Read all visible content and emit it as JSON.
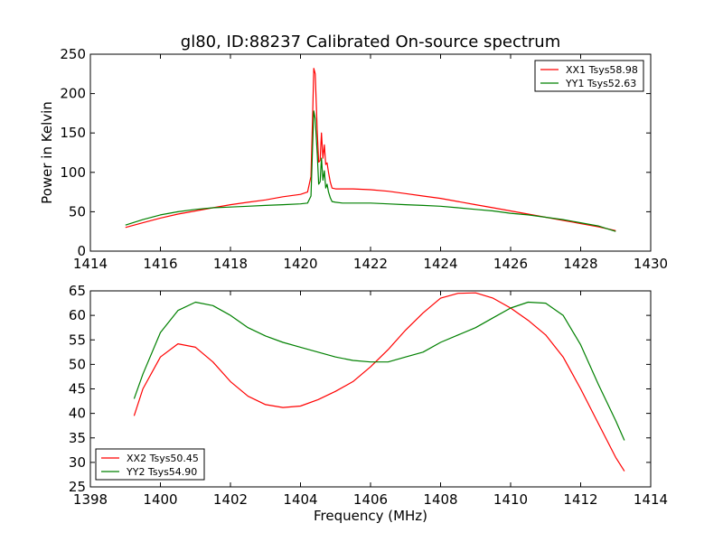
{
  "chart_data": [
    {
      "type": "line",
      "title": "gl80, ID:88237 Calibrated On-source spectrum",
      "xlabel": "",
      "ylabel": "Power in Kelvin",
      "xlim": [
        1414,
        1430
      ],
      "ylim": [
        0,
        250
      ],
      "xticks": [
        1414,
        1416,
        1418,
        1420,
        1422,
        1424,
        1426,
        1428,
        1430
      ],
      "yticks": [
        0,
        50,
        100,
        150,
        200,
        250
      ],
      "xtick_labels": [
        "1414",
        "1416",
        "1418",
        "1420",
        "1422",
        "1424",
        "1426",
        "1428",
        "1430"
      ],
      "ytick_labels": [
        "0",
        "50",
        "100",
        "150",
        "200",
        "250"
      ],
      "legend_position": "top-right",
      "series": [
        {
          "name": "XX1 Tsys58.98",
          "color": "#ff0000",
          "x": [
            1415.0,
            1415.5,
            1416.0,
            1416.5,
            1417.0,
            1417.5,
            1418.0,
            1418.5,
            1419.0,
            1419.5,
            1420.0,
            1420.2,
            1420.3,
            1420.35,
            1420.38,
            1420.42,
            1420.48,
            1420.52,
            1420.56,
            1420.6,
            1420.64,
            1420.68,
            1420.72,
            1420.76,
            1420.8,
            1420.85,
            1420.9,
            1421.0,
            1421.2,
            1421.5,
            1422.0,
            1422.5,
            1423.0,
            1423.5,
            1424.0,
            1424.5,
            1425.0,
            1425.5,
            1426.0,
            1426.5,
            1427.0,
            1427.5,
            1428.0,
            1428.5,
            1429.0
          ],
          "y": [
            30,
            36,
            42,
            47,
            51,
            55,
            59,
            62,
            65,
            69,
            72,
            75,
            95,
            180,
            232,
            225,
            150,
            113,
            115,
            150,
            118,
            135,
            110,
            112,
            100,
            88,
            80,
            79,
            79,
            79,
            78,
            76,
            73,
            70,
            67,
            63,
            59,
            55,
            51,
            47,
            43,
            39,
            35,
            31,
            26
          ]
        },
        {
          "name": "YY1 Tsys52.63",
          "color": "#008000",
          "x": [
            1415.0,
            1415.5,
            1416.0,
            1416.5,
            1417.0,
            1417.5,
            1418.0,
            1418.5,
            1419.0,
            1419.5,
            1420.0,
            1420.2,
            1420.3,
            1420.35,
            1420.38,
            1420.42,
            1420.48,
            1420.52,
            1420.56,
            1420.6,
            1420.64,
            1420.68,
            1420.72,
            1420.76,
            1420.8,
            1420.85,
            1420.9,
            1421.0,
            1421.2,
            1421.5,
            1422.0,
            1422.5,
            1423.0,
            1423.5,
            1424.0,
            1424.5,
            1425.0,
            1425.5,
            1426.0,
            1426.5,
            1427.0,
            1427.5,
            1428.0,
            1428.5,
            1429.0
          ],
          "y": [
            33,
            40,
            46,
            50,
            53,
            55,
            56,
            57,
            58,
            59,
            60,
            61,
            70,
            140,
            178,
            168,
            122,
            85,
            88,
            118,
            90,
            102,
            80,
            85,
            75,
            68,
            63,
            62,
            61,
            61,
            61,
            60,
            59,
            58,
            57,
            55,
            53,
            51,
            48,
            46,
            43,
            40,
            36,
            32,
            25
          ]
        }
      ]
    },
    {
      "type": "line",
      "title": "",
      "xlabel": "Frequency (MHz)",
      "ylabel": "",
      "xlim": [
        1398,
        1414
      ],
      "ylim": [
        25,
        65
      ],
      "xticks": [
        1398,
        1400,
        1402,
        1404,
        1406,
        1408,
        1410,
        1412,
        1414
      ],
      "yticks": [
        25,
        30,
        35,
        40,
        45,
        50,
        55,
        60,
        65
      ],
      "xtick_labels": [
        "1398",
        "1400",
        "1402",
        "1404",
        "1406",
        "1408",
        "1410",
        "1412",
        "1414"
      ],
      "ytick_labels": [
        "25",
        "30",
        "35",
        "40",
        "45",
        "50",
        "55",
        "60",
        "65"
      ],
      "legend_position": "bottom-left",
      "series": [
        {
          "name": "XX2 Tsys50.45",
          "color": "#ff0000",
          "x": [
            1399.25,
            1399.5,
            1400.0,
            1400.5,
            1401.0,
            1401.5,
            1402.0,
            1402.5,
            1403.0,
            1403.5,
            1404.0,
            1404.5,
            1405.0,
            1405.5,
            1406.0,
            1406.5,
            1407.0,
            1407.5,
            1408.0,
            1408.5,
            1409.0,
            1409.5,
            1410.0,
            1410.5,
            1411.0,
            1411.5,
            1412.0,
            1412.5,
            1413.0,
            1413.25
          ],
          "y": [
            39.5,
            45,
            51.5,
            54.2,
            53.5,
            50.5,
            46.5,
            43.5,
            41.8,
            41.2,
            41.5,
            42.8,
            44.5,
            46.5,
            49.5,
            53,
            57,
            60.5,
            63.5,
            64.5,
            64.6,
            63.5,
            61.5,
            59,
            56,
            51.5,
            45,
            38,
            31,
            28.2
          ]
        },
        {
          "name": "YY2 Tsys54.90",
          "color": "#008000",
          "x": [
            1399.25,
            1399.5,
            1400.0,
            1400.5,
            1401.0,
            1401.5,
            1402.0,
            1402.5,
            1403.0,
            1403.5,
            1404.0,
            1404.5,
            1405.0,
            1405.5,
            1406.0,
            1406.5,
            1407.0,
            1407.5,
            1408.0,
            1408.5,
            1409.0,
            1409.5,
            1410.0,
            1410.5,
            1411.0,
            1411.5,
            1412.0,
            1412.5,
            1413.0,
            1413.25
          ],
          "y": [
            43,
            48,
            56.5,
            61,
            62.7,
            62,
            60,
            57.5,
            55.8,
            54.5,
            53.5,
            52.5,
            51.5,
            50.8,
            50.5,
            50.5,
            51.5,
            52.5,
            54.5,
            56,
            57.5,
            59.5,
            61.5,
            62.7,
            62.5,
            60,
            54,
            46,
            38.5,
            34.5
          ]
        }
      ]
    }
  ]
}
